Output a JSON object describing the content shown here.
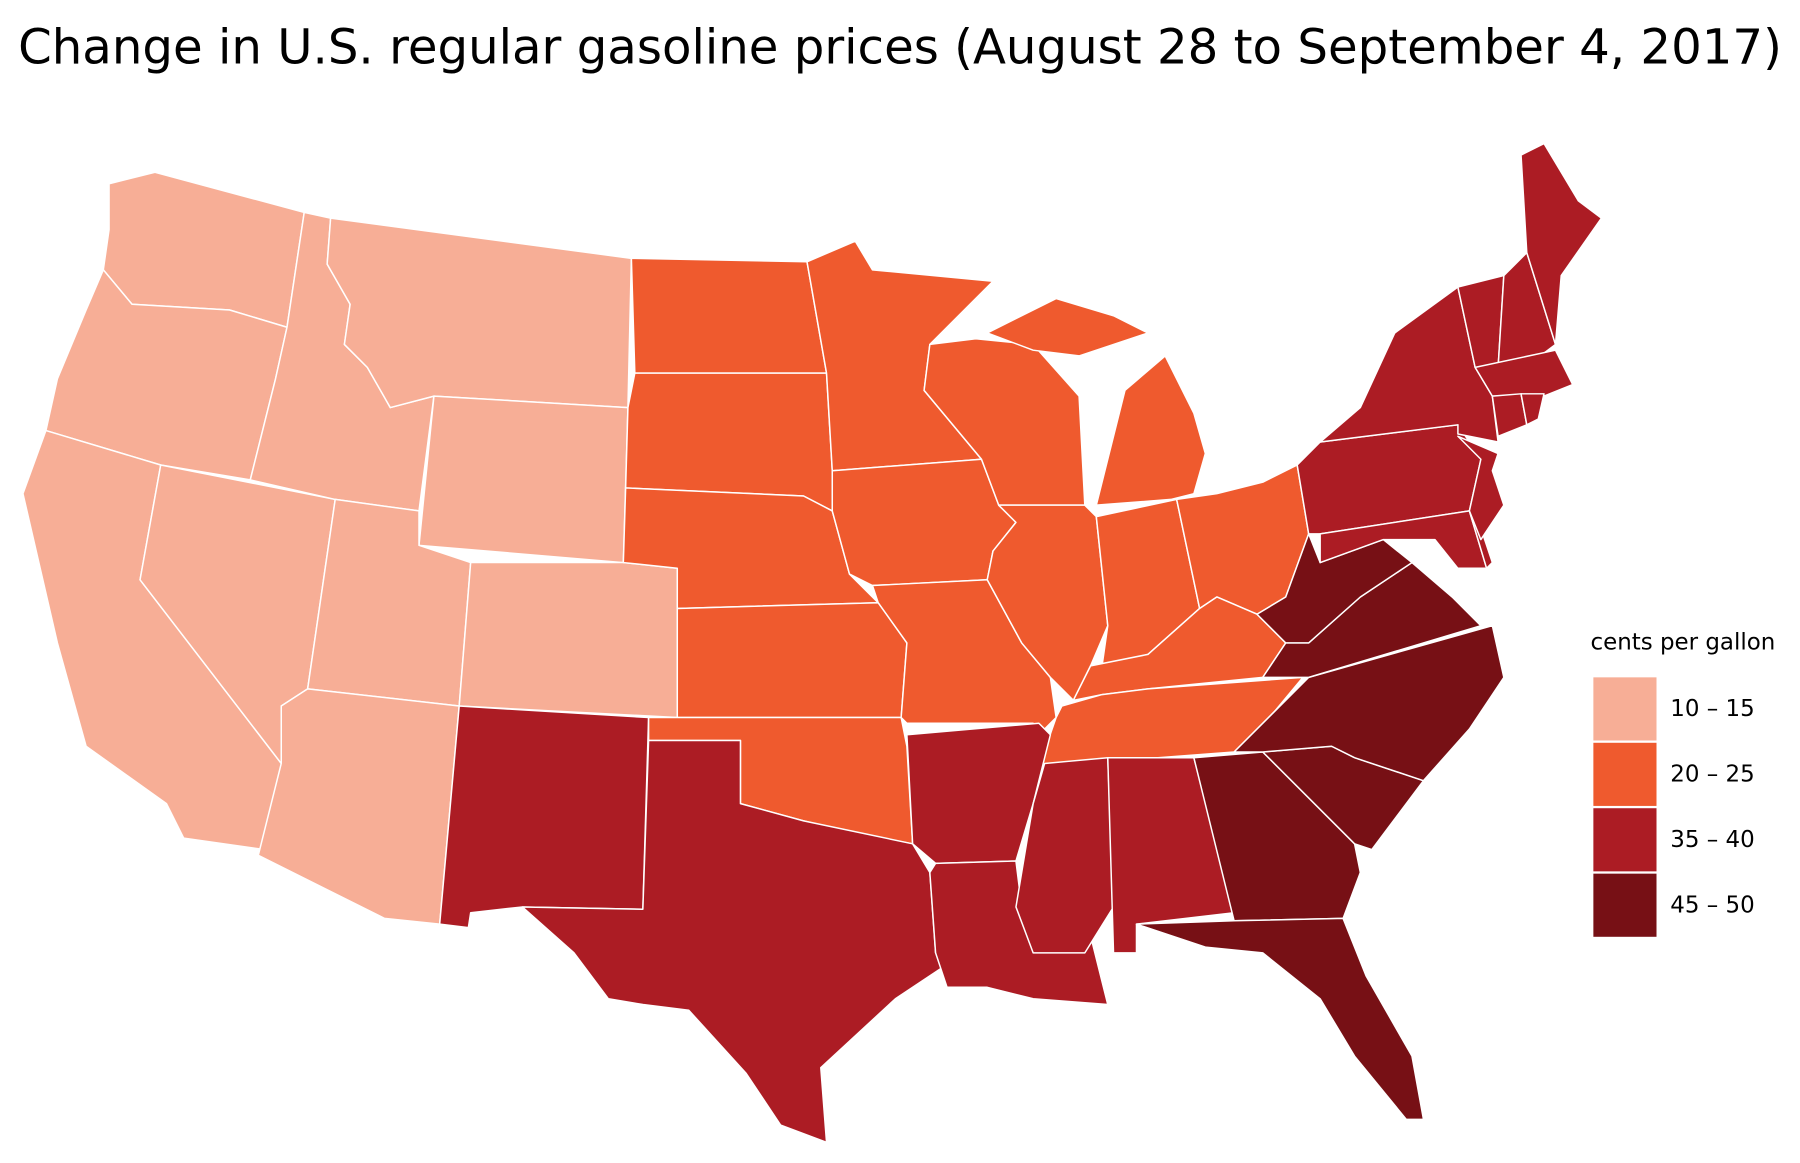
{
  "title": "Change in U.S. regular gasoline prices (August 28 to September 4, 2017)",
  "legend": {
    "title": "cents per gallon",
    "items": [
      {
        "label": "10 – 15",
        "color": "#f7ae96"
      },
      {
        "label": "20 – 25",
        "color": "#ef5a2e"
      },
      {
        "label": "35 – 40",
        "color": "#ac1c24"
      },
      {
        "label": "45 – 50",
        "color": "#771015"
      }
    ]
  }
}
